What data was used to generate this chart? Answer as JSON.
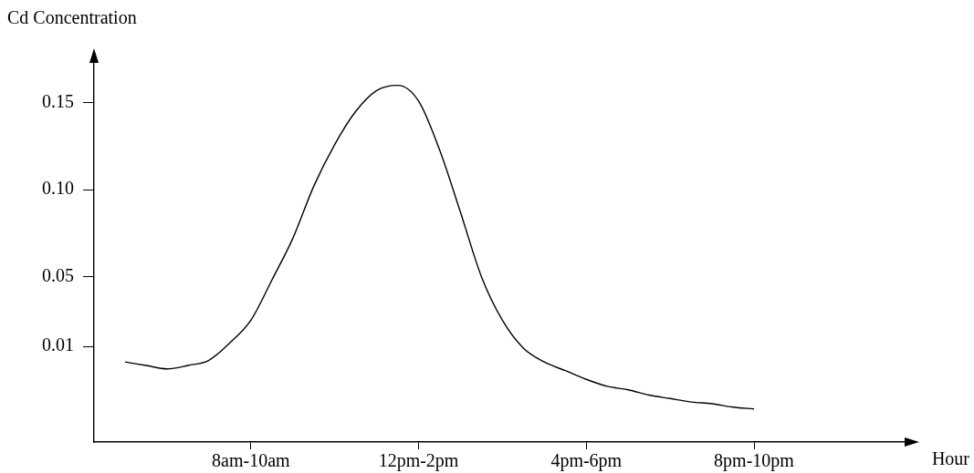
{
  "chart_data": {
    "type": "line",
    "annotations": [
      "Hour"
    ],
    "ylabel": "Cd Concentration",
    "categories": [
      null,
      null,
      null,
      null,
      null,
      null,
      "8am-10am",
      null,
      null,
      null,
      null,
      null,
      null,
      null,
      "12pm-2pm",
      null,
      null,
      null,
      null,
      null,
      null,
      null,
      "4pm-6pm",
      null,
      null,
      null,
      null,
      null,
      null,
      null,
      "8pm-10pm"
    ],
    "series": [
      {
        "color": "#000000",
        "values": [
          0.001,
          -0.001,
          -0.003,
          -0.001,
          0.002,
          0.012,
          0.025,
          0.048,
          0.072,
          0.102,
          0.126,
          0.145,
          0.157,
          0.16,
          0.151,
          0.123,
          0.087,
          0.05,
          0.025,
          0.009,
          0.001,
          -0.004,
          -0.009,
          -0.013,
          -0.015,
          -0.018,
          -0.02,
          -0.022,
          -0.023,
          -0.025,
          -0.026
        ]
      }
    ],
    "ylim": [
      -0.045,
      0.175
    ],
    "yticks": [
      {
        "value": 0.01,
        "label": "0.01"
      },
      {
        "value": 0.05,
        "label": "0.05"
      },
      {
        "value": 0.1,
        "label": "0.10"
      },
      {
        "value": 0.15,
        "label": "0.15"
      }
    ],
    "grid": false,
    "legend": false,
    "marker": "none",
    "line_style": "solid"
  }
}
